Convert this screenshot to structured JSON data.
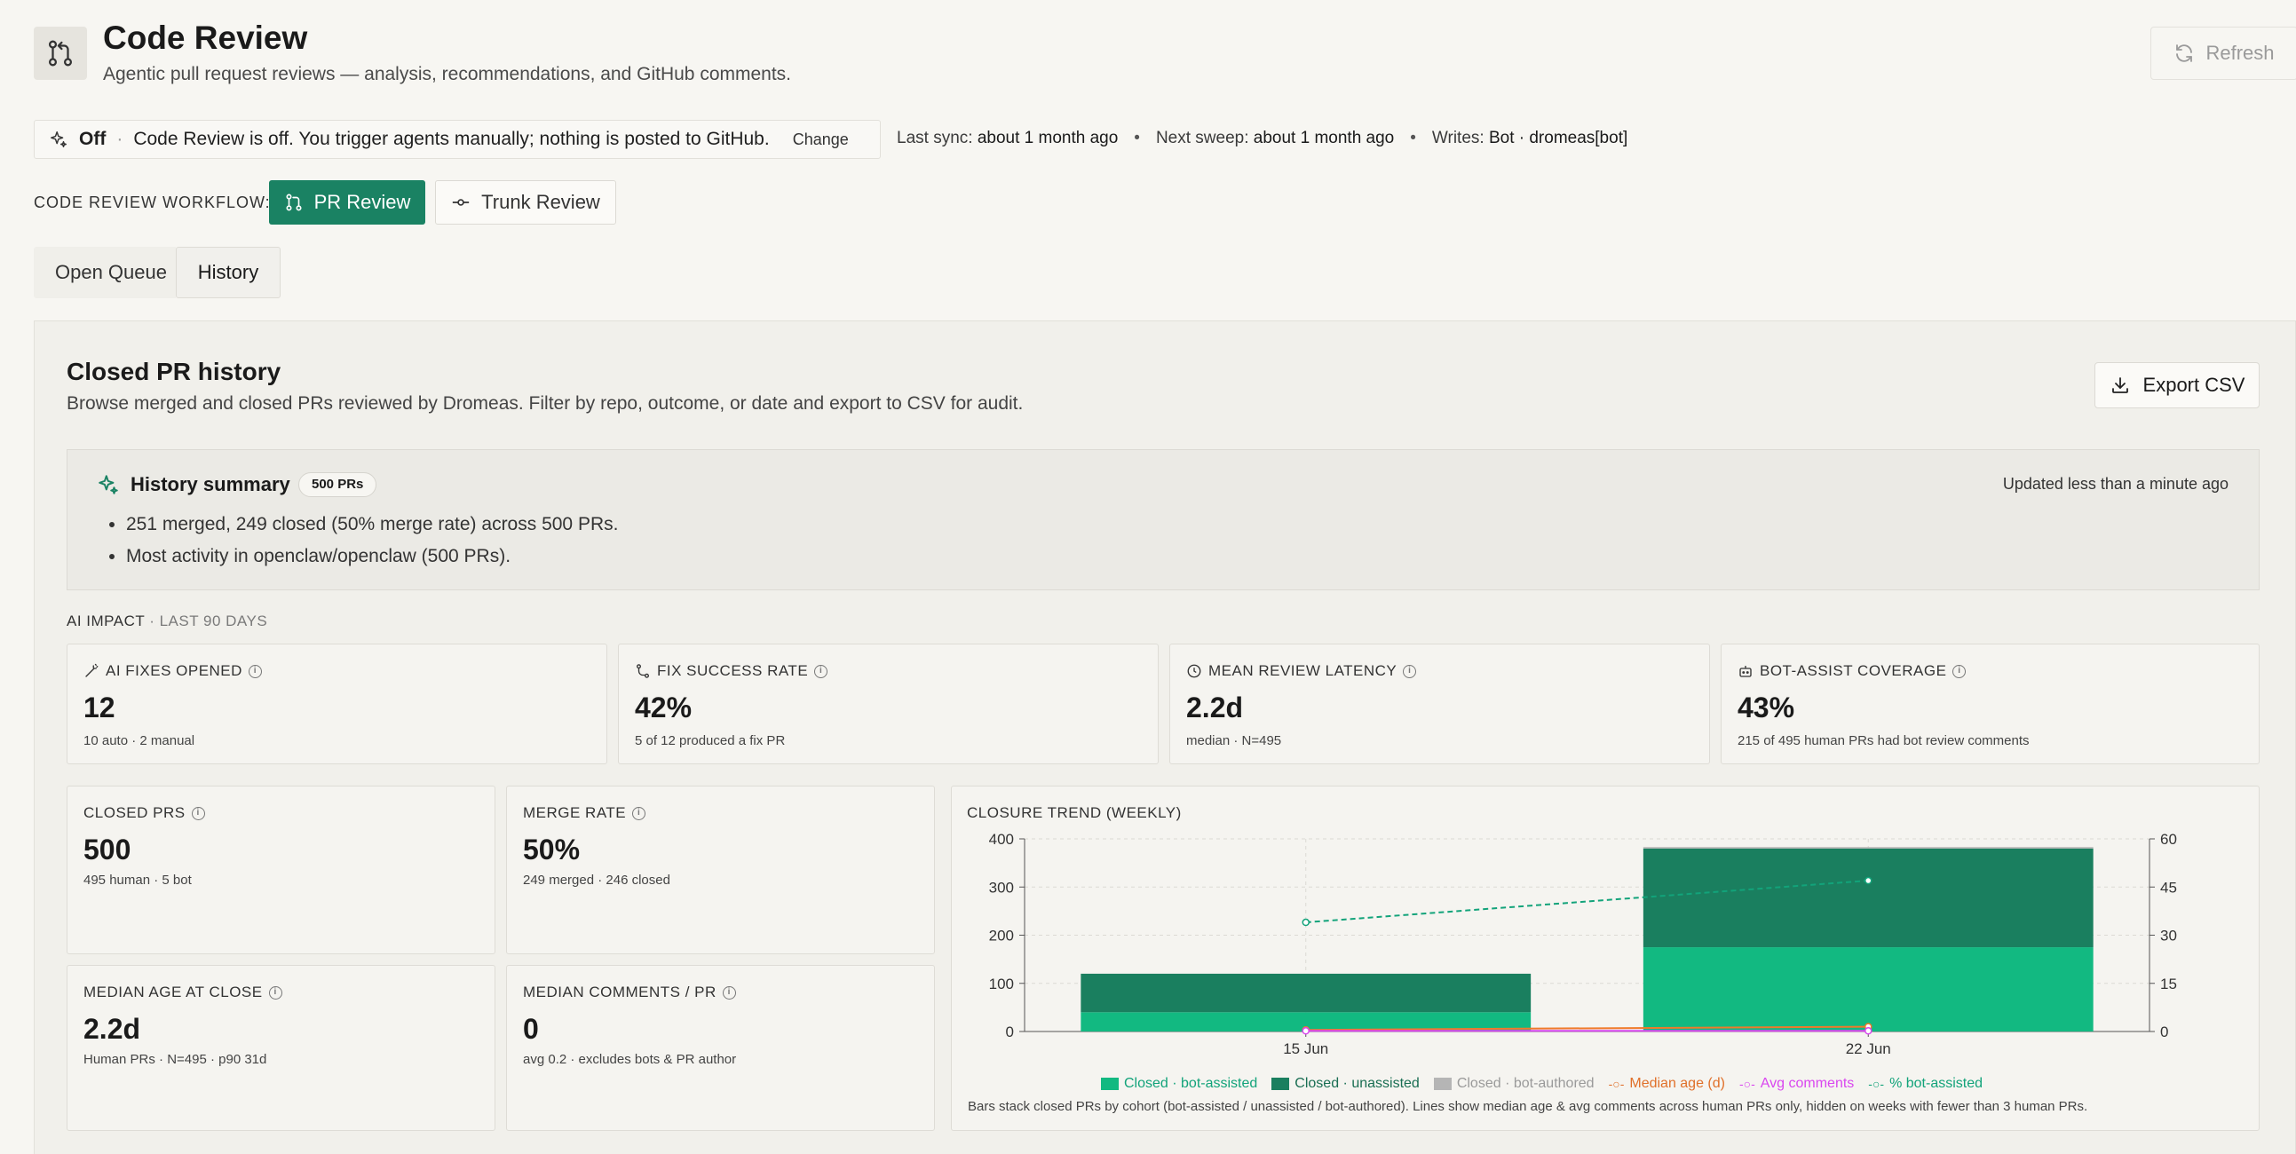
{
  "header": {
    "title": "Code Review",
    "subtitle": "Agentic pull request reviews — analysis, recommendations, and GitHub comments.",
    "refresh_label": "Refresh"
  },
  "status": {
    "state": "Off",
    "message": "Code Review is off. You trigger agents manually; nothing is posted to GitHub.",
    "change_label": "Change",
    "last_sync_label": "Last sync:",
    "last_sync_value": "about 1 month ago",
    "next_sweep_label": "Next sweep:",
    "next_sweep_value": "about 1 month ago",
    "writes_label": "Writes:",
    "writes_value": "Bot · dromeas[bot]"
  },
  "workflow": {
    "label": "CODE REVIEW WORKFLOW:",
    "pr_review": "PR Review",
    "trunk_review": "Trunk Review"
  },
  "tabs": {
    "open_queue": "Open Queue",
    "history": "History"
  },
  "panel": {
    "title": "Closed PR history",
    "subtitle": "Browse merged and closed PRs reviewed by Dromeas. Filter by repo, outcome, or date and export to CSV for audit.",
    "export_label": "Export CSV"
  },
  "summary": {
    "title": "History summary",
    "badge": "500 PRs",
    "updated": "Updated less than a minute ago",
    "bullets": [
      "251 merged, 249 closed (50% merge rate) across 500 PRs.",
      "Most activity in openclaw/openclaw (500 PRs)."
    ]
  },
  "ai_impact": {
    "label": "AI IMPACT",
    "range": "· LAST 90 DAYS",
    "cards": [
      {
        "title": "AI FIXES OPENED",
        "value": "12",
        "sub": "10 auto · 2 manual"
      },
      {
        "title": "FIX SUCCESS RATE",
        "value": "42%",
        "sub": "5 of 12 produced a fix PR"
      },
      {
        "title": "MEAN REVIEW LATENCY",
        "value": "2.2d",
        "sub": "median · N=495"
      },
      {
        "title": "BOT-ASSIST COVERAGE",
        "value": "43%",
        "sub": "215 of 495 human PRs had bot review comments"
      }
    ]
  },
  "stats": [
    {
      "title": "CLOSED PRS",
      "value": "500",
      "sub": "495 human · 5 bot"
    },
    {
      "title": "MERGE RATE",
      "value": "50%",
      "sub": "249 merged · 246 closed"
    },
    {
      "title": "MEDIAN AGE AT CLOSE",
      "value": "2.2d",
      "sub": "Human PRs · N=495 · p90 31d"
    },
    {
      "title": "MEDIAN COMMENTS / PR",
      "value": "0",
      "sub": "avg 0.2 · excludes bots & PR author"
    }
  ],
  "colors": {
    "accent": "#1a8263",
    "bot_assisted": "#12b981",
    "unassisted": "#1a7f5f",
    "bot_authored": "#b5b5b5",
    "median_age": "#f07a2a",
    "avg_comments": "#d946ef",
    "pct_bot": "#12a37a"
  },
  "chart_data": {
    "type": "bar",
    "title": "CLOSURE TREND (WEEKLY)",
    "categories": [
      "15 Jun",
      "22 Jun"
    ],
    "ylim": [
      0,
      400
    ],
    "y2lim": [
      0,
      60
    ],
    "yticks": [
      0,
      100,
      200,
      300,
      400
    ],
    "y2ticks": [
      0,
      15,
      30,
      45,
      60
    ],
    "series": [
      {
        "name": "Closed · bot-assisted",
        "kind": "bar",
        "values": [
          40,
          175
        ]
      },
      {
        "name": "Closed · unassisted",
        "kind": "bar",
        "values": [
          80,
          205
        ]
      },
      {
        "name": "Closed · bot-authored",
        "kind": "bar",
        "values": [
          0,
          3
        ]
      },
      {
        "name": "Median age (d)",
        "kind": "line",
        "axis": "right",
        "values": [
          0.5,
          1.5
        ]
      },
      {
        "name": "Avg comments",
        "kind": "line",
        "axis": "right",
        "values": [
          0.2,
          0.2
        ]
      },
      {
        "name": "% bot-assisted",
        "kind": "line",
        "axis": "right",
        "values": [
          34,
          47
        ]
      }
    ],
    "note": "Bars stack closed PRs by cohort (bot-assisted / unassisted / bot-authored). Lines show median age & avg comments across human PRs only, hidden on weeks with fewer than 3 human PRs."
  }
}
